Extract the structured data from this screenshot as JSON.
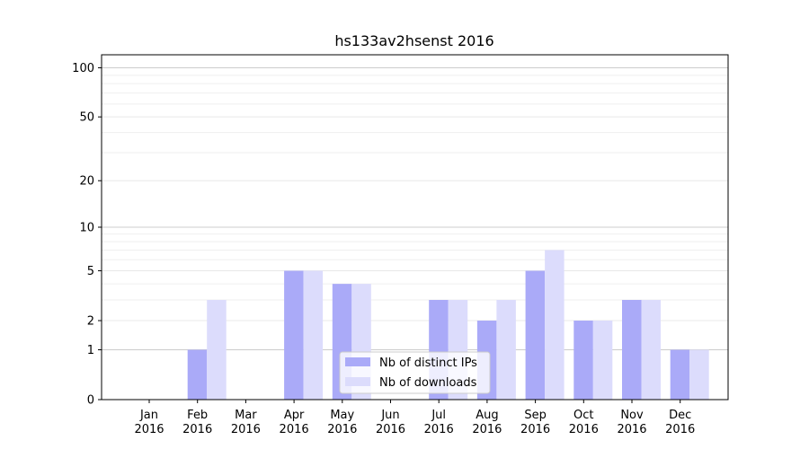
{
  "chart_data": {
    "type": "bar",
    "title": "hs133av2hsenst 2016",
    "xlabel": "",
    "ylabel": "",
    "yscale": "symlog",
    "categories": [
      [
        "Jan",
        "2016"
      ],
      [
        "Feb",
        "2016"
      ],
      [
        "Mar",
        "2016"
      ],
      [
        "Apr",
        "2016"
      ],
      [
        "May",
        "2016"
      ],
      [
        "Jun",
        "2016"
      ],
      [
        "Jul",
        "2016"
      ],
      [
        "Aug",
        "2016"
      ],
      [
        "Sep",
        "2016"
      ],
      [
        "Oct",
        "2016"
      ],
      [
        "Nov",
        "2016"
      ],
      [
        "Dec",
        "2016"
      ]
    ],
    "series": [
      {
        "name": "Nb of distinct IPs",
        "color": "#aaaaf8",
        "values": [
          0,
          1,
          0,
          5,
          4,
          0,
          3,
          2,
          5,
          2,
          3,
          1
        ]
      },
      {
        "name": "Nb of downloads",
        "color": "#dcdcfc",
        "values": [
          0,
          3,
          0,
          5,
          4,
          0,
          3,
          3,
          7,
          2,
          3,
          1
        ]
      }
    ],
    "yticks": [
      0,
      1,
      2,
      5,
      10,
      20,
      50,
      100
    ],
    "ytick_labels": [
      "0",
      "1",
      "2",
      "5",
      "10",
      "20",
      "50",
      "100"
    ],
    "ylim": [
      0,
      120
    ],
    "grid": true,
    "legend_position": "bottom-center"
  }
}
